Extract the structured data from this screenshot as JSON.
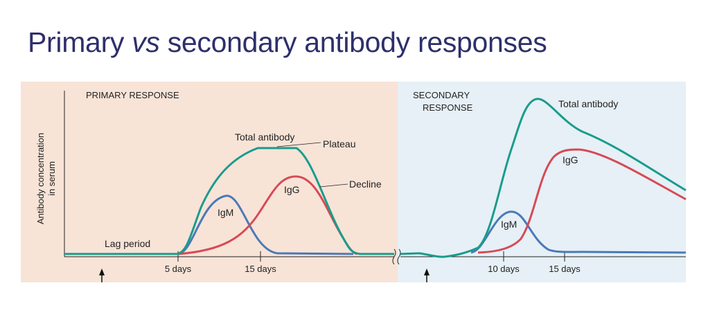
{
  "title": {
    "before": "Primary ",
    "italic": "vs",
    "after": " secondary antibody responses"
  },
  "y_axis_label": {
    "line1": "Antibody concentration",
    "line2": "in serum"
  },
  "primary": {
    "heading": "PRIMARY RESPONSE",
    "lag_label": "Lag period",
    "igm_label": "IgM",
    "igg_label": "IgG",
    "total_label": "Total antibody",
    "plateau_label": "Plateau",
    "decline_label": "Decline",
    "ticks": [
      "5 days",
      "15 days"
    ]
  },
  "secondary": {
    "heading_line1": "SECONDARY",
    "heading_line2": "RESPONSE",
    "igm_label": "IgM",
    "igg_label": "IgG",
    "total_label": "Total antibody",
    "ticks": [
      "10 days",
      "15 days"
    ]
  },
  "colors": {
    "primary_bg": "#f8e3d7",
    "secondary_bg": "#e6f0f6",
    "total": "#1a9c8c",
    "igg": "#d64a55",
    "igm": "#4b79b8",
    "title": "#2e2f6b",
    "axis": "#222222"
  },
  "markers": [
    "antigen-exposure-arrow-up",
    "antigen-exposure-arrow-up"
  ]
}
